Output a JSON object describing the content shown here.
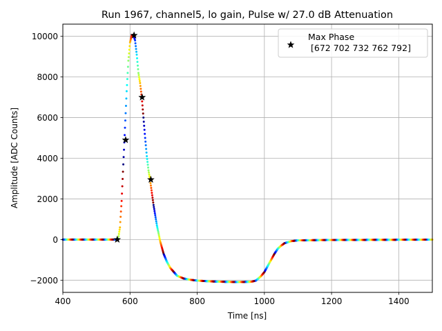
{
  "chart_data": {
    "type": "scatter",
    "title": "Run 1967, channel5, lo gain, Pulse w/ 27.0 dB Attenuation",
    "xlabel": "Time [ns]",
    "ylabel": "Amplitude [ADC Counts]",
    "xlim": [
      400,
      1500
    ],
    "ylim": [
      -2600,
      10600
    ],
    "xticks": [
      400,
      600,
      800,
      1000,
      1200,
      1400
    ],
    "yticks": [
      -2000,
      0,
      2000,
      4000,
      6000,
      8000,
      10000
    ],
    "xtick_labels": [
      "400",
      "600",
      "800",
      "1000",
      "1200",
      "1400"
    ],
    "ytick_labels": [
      "−2000",
      "0",
      "2000",
      "4000",
      "6000",
      "8000",
      "10000"
    ],
    "grid": true,
    "legend": {
      "location": "upper right",
      "label": "Max Phase",
      "values_text": "[672 702 732 762 792]",
      "marker": "star"
    },
    "colormap": "jet",
    "pulse_samples": {
      "x": [
        400,
        420,
        440,
        460,
        480,
        500,
        520,
        540,
        555,
        565,
        570,
        575,
        580,
        585,
        590,
        595,
        600,
        605,
        610,
        615,
        620,
        625,
        630,
        635,
        640,
        645,
        650,
        655,
        660,
        665,
        670,
        680,
        690,
        700,
        710,
        720,
        740,
        760,
        780,
        800,
        840,
        880,
        920,
        960,
        975,
        990,
        1000,
        1010,
        1020,
        1030,
        1040,
        1050,
        1060,
        1080,
        1100,
        1150,
        1200,
        1300,
        1400,
        1500
      ],
      "y": [
        0,
        0,
        0,
        0,
        0,
        0,
        0,
        0,
        0,
        50,
        600,
        1900,
        3700,
        5500,
        7300,
        8800,
        9700,
        10050,
        10080,
        9800,
        9100,
        8200,
        7700,
        7000,
        6000,
        5000,
        4100,
        3400,
        2900,
        2300,
        1700,
        700,
        -100,
        -700,
        -1100,
        -1400,
        -1780,
        -1920,
        -1980,
        -2020,
        -2060,
        -2080,
        -2090,
        -2080,
        -2020,
        -1800,
        -1600,
        -1300,
        -1000,
        -700,
        -450,
        -300,
        -180,
        -80,
        -40,
        -30,
        -20,
        -15,
        -10,
        -5
      ]
    },
    "max_phase_points": {
      "x": [
        562,
        587,
        612,
        636,
        662
      ],
      "y": [
        0,
        4900,
        10050,
        7000,
        2950
      ]
    }
  }
}
